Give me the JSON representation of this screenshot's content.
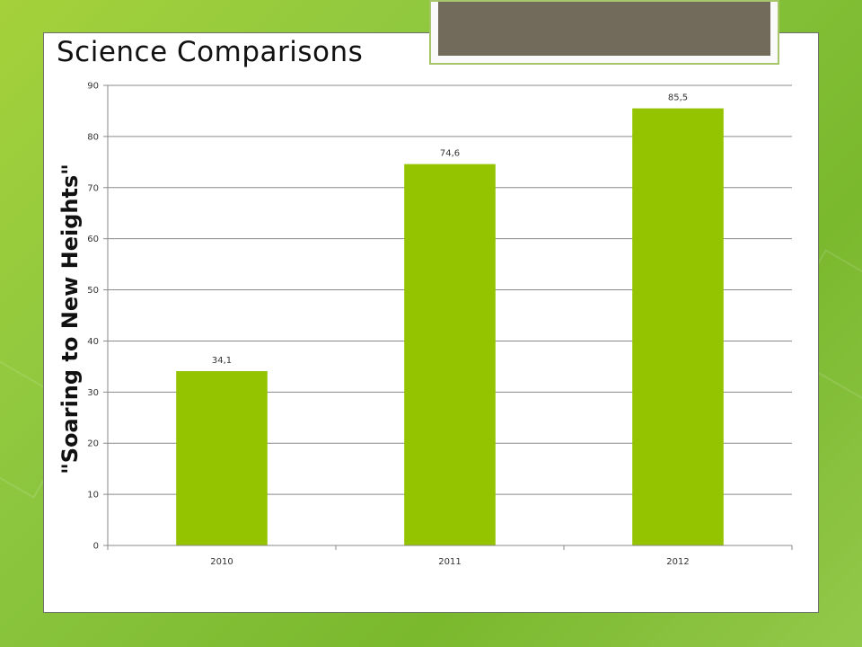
{
  "slide": {
    "title": "Science Comparisons",
    "side_label": "\"Soaring to New Heights\""
  },
  "colors": {
    "bar": "#94c300",
    "grid": "#8a8a8a",
    "title_box_fill": "#726b5b",
    "title_box_border": "#a7c66b"
  },
  "chart_data": {
    "type": "bar",
    "categories": [
      "2010",
      "2011",
      "2012"
    ],
    "values": [
      34.1,
      74.6,
      85.5
    ],
    "data_labels": [
      "34,1",
      "74,6",
      "85,5"
    ],
    "ylim": [
      0,
      90
    ],
    "yticks": [
      0,
      10,
      20,
      30,
      40,
      50,
      60,
      70,
      80,
      90
    ],
    "grid": true,
    "legend": "none"
  }
}
